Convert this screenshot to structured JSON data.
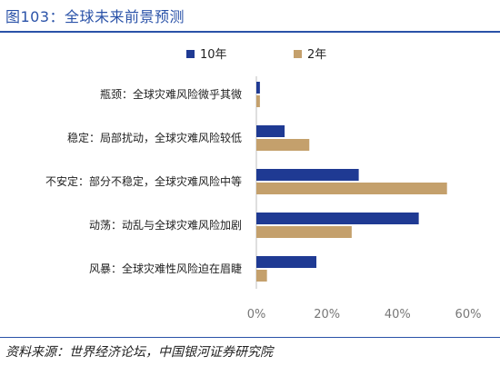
{
  "header": {
    "title": "图103：全球未来前景预测"
  },
  "footer": {
    "source": "资料来源：世界经济论坛，中国银河证券研究院"
  },
  "chart_data": {
    "type": "bar",
    "orientation": "horizontal",
    "title": "",
    "xlabel": "",
    "ylabel": "",
    "categories": [
      "瓶颈：全球灾难风险微乎其微",
      "稳定：局部扰动，全球灾难风险较低",
      "不安定：部分不稳定，全球灾难风险中等",
      "动荡：动乱与全球灾难风险加剧",
      "风暴：全球灾难性风险迫在眉睫"
    ],
    "series": [
      {
        "name": "10年",
        "color": "#1f3a93",
        "values": [
          1,
          8,
          29,
          46,
          17
        ]
      },
      {
        "name": "2年",
        "color": "#c4a06c",
        "values": [
          1,
          15,
          54,
          27,
          3
        ]
      }
    ],
    "xlim": [
      0,
      60
    ],
    "xticks": [
      "0%",
      "20%",
      "40%",
      "60%"
    ],
    "grid": false,
    "legend_position": "top"
  }
}
